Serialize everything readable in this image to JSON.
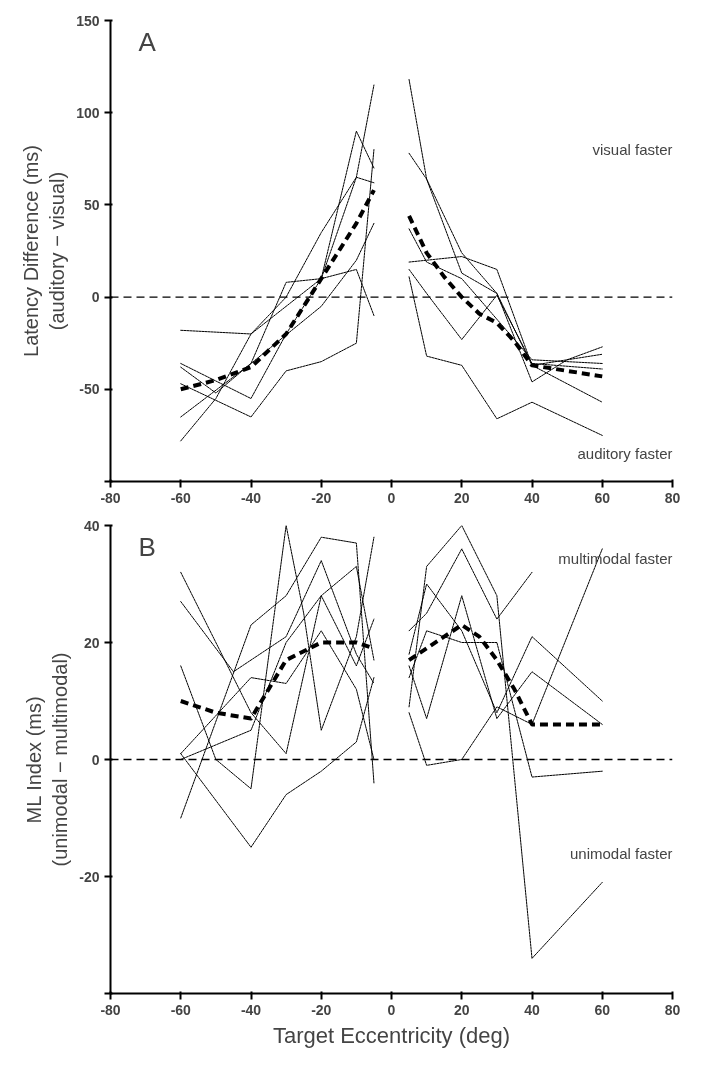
{
  "chart_data": [
    {
      "type": "line",
      "ylabel": "Latency Difference (ms)\n(auditory − visual)",
      "xlim": [
        -80,
        80
      ],
      "xticks": [
        -80,
        -60,
        -40,
        -20,
        0,
        20,
        40,
        60,
        80
      ],
      "ylim": [
        -100,
        150
      ],
      "yticks": [
        {
          "value": -100,
          "label": null
        },
        -50,
        0,
        50,
        100,
        150
      ],
      "grid": false,
      "annotations": [
        "A",
        "visual faster",
        "auditory faster"
      ],
      "ref_lines": [
        {
          "axis": "y",
          "value": 0,
          "line_style": "dashed",
          "color": "#000000"
        }
      ],
      "series": [
        {
          "color": "#000000",
          "line_style": "dotted",
          "x": [
            -60,
            -40,
            -20,
            -10,
            -5
          ],
          "values": [
            -18,
            -20,
            10,
            65,
            62
          ]
        },
        {
          "color": "#000000",
          "line_style": "dotted",
          "x": [
            -60,
            -40,
            -30,
            -20,
            -10,
            -5
          ],
          "values": [
            -36,
            -55,
            -20,
            10,
            90,
            70
          ]
        },
        {
          "color": "#000000",
          "line_style": "dotted",
          "x": [
            -60,
            -50,
            -40,
            -30,
            -20,
            -10,
            -5
          ],
          "values": [
            -38,
            -52,
            -36,
            8,
            10,
            15,
            -10
          ]
        },
        {
          "color": "#000000",
          "line_style": "dotted",
          "x": [
            -60,
            -40,
            -20,
            -10,
            -5
          ],
          "values": [
            -65,
            -36,
            -5,
            20,
            40
          ]
        },
        {
          "color": "#000000",
          "line_style": "dotted",
          "x": [
            -60,
            -50,
            -40,
            -30,
            -20,
            -10,
            -5
          ],
          "values": [
            -78,
            -55,
            -20,
            0,
            35,
            65,
            115
          ]
        },
        {
          "color": "#000000",
          "line_style": "dotted",
          "x": [
            -60,
            -40,
            -30,
            -20,
            -10,
            -5
          ],
          "values": [
            -47,
            -65,
            -40,
            -35,
            -25,
            80
          ]
        },
        {
          "color": "#000000",
          "line_style": "dashed",
          "x": [
            -60,
            -50,
            -40,
            -30,
            -20,
            -10,
            -5
          ],
          "values": [
            -50,
            -45,
            -38,
            -20,
            10,
            40,
            58
          ]
        },
        {
          "color": "#000000",
          "line_style": "dotted",
          "x": [
            5,
            10,
            20,
            30,
            40,
            60
          ],
          "values": [
            118,
            64,
            24,
            2,
            -37,
            -57
          ]
        },
        {
          "color": "#000000",
          "line_style": "dotted",
          "x": [
            5,
            10,
            20,
            30,
            40,
            50,
            60
          ],
          "values": [
            78,
            64,
            13,
            2,
            -46,
            -34,
            -27
          ]
        },
        {
          "color": "#000000",
          "line_style": "dotted",
          "x": [
            5,
            20,
            30,
            40,
            60
          ],
          "values": [
            19,
            22,
            15,
            -37,
            -31
          ]
        },
        {
          "color": "#000000",
          "line_style": "dotted",
          "x": [
            5,
            10,
            20,
            30,
            40,
            60
          ],
          "values": [
            15,
            2,
            -23,
            1,
            -36,
            -39
          ]
        },
        {
          "color": "#000000",
          "line_style": "dotted",
          "x": [
            5,
            10,
            20,
            30,
            40,
            60
          ],
          "values": [
            11,
            -32,
            -37,
            -66,
            -57,
            -75
          ]
        },
        {
          "color": "#000000",
          "line_style": "dotted",
          "x": [
            5,
            10,
            20,
            30,
            40,
            60
          ],
          "values": [
            37,
            19,
            10,
            -12,
            -34,
            -36
          ]
        },
        {
          "color": "#000000",
          "line_style": "dashed",
          "x": [
            5,
            10,
            15,
            20,
            25,
            30,
            35,
            40,
            50,
            60
          ],
          "values": [
            44,
            24,
            11,
            0,
            -9,
            -14,
            -24,
            -37,
            -40,
            -43
          ]
        }
      ]
    },
    {
      "type": "line",
      "xlabel": "Target Eccentricity (deg)",
      "ylabel": "ML Index (ms)\n(unimodal − multimodal)",
      "xlim": [
        -80,
        80
      ],
      "xticks": [
        -80,
        -60,
        -40,
        -20,
        0,
        20,
        40,
        60,
        80
      ],
      "ylim": [
        -40,
        40
      ],
      "yticks": [
        {
          "value": -40,
          "label": null
        },
        -20,
        0,
        20,
        40
      ],
      "grid": false,
      "annotations": [
        "B",
        "multimodal faster",
        "unimodal faster"
      ],
      "ref_lines": [
        {
          "axis": "y",
          "value": 0,
          "line_style": "dashed",
          "color": "#000000"
        }
      ],
      "series": [
        {
          "color": "#000000",
          "line_style": "dotted",
          "x": [
            -60,
            -40,
            -30,
            -20,
            -10,
            -5
          ],
          "values": [
            32,
            8,
            1,
            28,
            16,
            24
          ]
        },
        {
          "color": "#000000",
          "line_style": "dotted",
          "x": [
            -60,
            -45,
            -30,
            -20,
            -10,
            -5
          ],
          "values": [
            27,
            15,
            21,
            34,
            18,
            13
          ]
        },
        {
          "color": "#000000",
          "line_style": "dotted",
          "x": [
            -60,
            -50,
            -40,
            -30,
            -25,
            -20,
            -10,
            -5
          ],
          "values": [
            16,
            0,
            -5,
            40,
            25,
            5,
            21,
            38
          ]
        },
        {
          "color": "#000000",
          "line_style": "dotted",
          "x": [
            -60,
            -40,
            -30,
            -20,
            -10,
            -5
          ],
          "values": [
            -10,
            23,
            28,
            38,
            37,
            -4
          ]
        },
        {
          "color": "#000000",
          "line_style": "dotted",
          "x": [
            -60,
            -40,
            -30,
            -20,
            -10,
            -5
          ],
          "values": [
            1,
            -15,
            -6,
            -2,
            3,
            14
          ]
        },
        {
          "color": "#000000",
          "line_style": "dotted",
          "x": [
            -60,
            -40,
            -30,
            -20,
            -10,
            -5
          ],
          "values": [
            0,
            5,
            20,
            28,
            33,
            17
          ]
        },
        {
          "color": "#000000",
          "line_style": "dotted",
          "x": [
            -60,
            -40,
            -30,
            -20,
            -10,
            -5
          ],
          "values": [
            1,
            14,
            13,
            22,
            12,
            0
          ]
        },
        {
          "color": "#000000",
          "line_style": "dashed",
          "x": [
            -60,
            -50,
            -40,
            -30,
            -20,
            -10,
            -5
          ],
          "values": [
            10,
            8,
            7,
            17,
            20,
            20,
            19
          ]
        },
        {
          "color": "#000000",
          "line_style": "dotted",
          "x": [
            5,
            10,
            20,
            30,
            40,
            60
          ],
          "values": [
            9,
            33,
            40,
            28,
            -34,
            -21
          ]
        },
        {
          "color": "#000000",
          "line_style": "dotted",
          "x": [
            5,
            10,
            20,
            30,
            40
          ],
          "values": [
            22,
            25,
            36,
            24,
            32
          ]
        },
        {
          "color": "#000000",
          "line_style": "dotted",
          "x": [
            5,
            10,
            20,
            30,
            40,
            60
          ],
          "values": [
            18,
            30,
            22,
            8,
            21,
            10
          ]
        },
        {
          "color": "#000000",
          "line_style": "dotted",
          "x": [
            5,
            10,
            20,
            30,
            40,
            60
          ],
          "values": [
            8,
            -1,
            0,
            9,
            6,
            36
          ]
        },
        {
          "color": "#000000",
          "line_style": "dotted",
          "x": [
            5,
            10,
            20,
            30,
            40,
            60
          ],
          "values": [
            16,
            7,
            28,
            7,
            15,
            6
          ]
        },
        {
          "color": "#000000",
          "line_style": "dotted",
          "x": [
            5,
            10,
            20,
            30,
            40,
            60
          ],
          "values": [
            14,
            22,
            20,
            20,
            -3,
            -2
          ]
        },
        {
          "color": "#000000",
          "line_style": "dashed",
          "x": [
            5,
            10,
            15,
            20,
            25,
            30,
            35,
            40,
            50,
            60
          ],
          "values": [
            17,
            19,
            21,
            23,
            21,
            17,
            12,
            6,
            6,
            6
          ]
        }
      ]
    }
  ]
}
